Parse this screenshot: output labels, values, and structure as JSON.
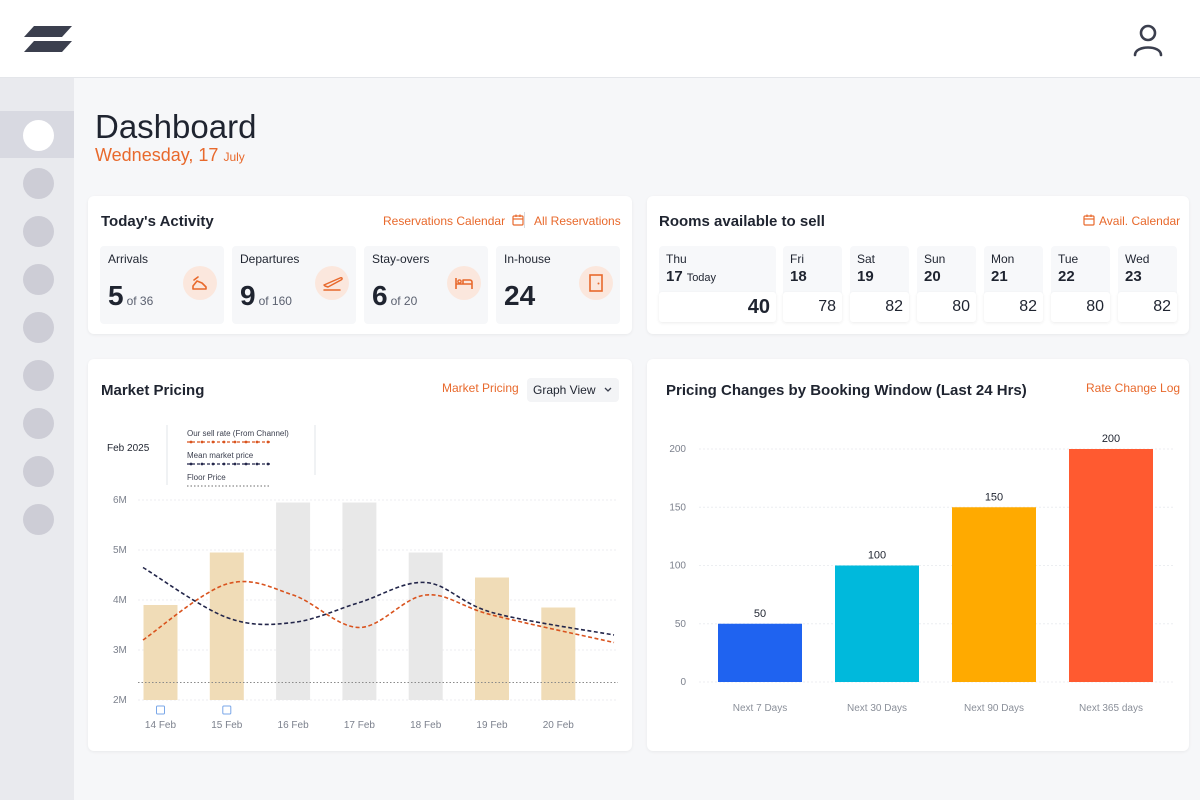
{
  "page": {
    "title": "Dashboard",
    "date_main": "Wednesday, 17",
    "date_month": "July"
  },
  "activity": {
    "title": "Today's Activity",
    "reservations_calendar": "Reservations Calendar",
    "all_reservations": "All Reservations",
    "tiles": [
      {
        "label": "Arrivals",
        "value": "5",
        "sub": "of 36",
        "icon": "walking-icon"
      },
      {
        "label": "Departures",
        "value": "9",
        "sub": "of 160",
        "icon": "plane-departure-icon"
      },
      {
        "label": "Stay-overs",
        "value": "6",
        "sub": "of 20",
        "icon": "bed-icon"
      },
      {
        "label": "In-house",
        "value": "24",
        "sub": "",
        "icon": "door-icon"
      }
    ]
  },
  "rooms": {
    "title": "Rooms available to sell",
    "avail_calendar": "Avail. Calendar",
    "days": [
      {
        "name": "Thu",
        "num": "17",
        "today": "Today",
        "value": "40"
      },
      {
        "name": "Fri",
        "num": "18",
        "value": "78"
      },
      {
        "name": "Sat",
        "num": "19",
        "value": "82"
      },
      {
        "name": "Sun",
        "num": "20",
        "value": "80"
      },
      {
        "name": "Mon",
        "num": "21",
        "value": "82"
      },
      {
        "name": "Tue",
        "num": "22",
        "value": "80"
      },
      {
        "name": "Wed",
        "num": "23",
        "value": "82"
      }
    ]
  },
  "market": {
    "title": "Market Pricing",
    "link": "Market Pricing",
    "view_select": "Graph View",
    "period": "Feb 2025",
    "colors": {
      "bar_highlight": "#f0dcb7",
      "bar_grey": "#e8e8e8",
      "sell": "#d9531e",
      "mean": "#23264a",
      "floor": "#8a8a8a"
    }
  },
  "pricing": {
    "title": "Pricing Changes by Booking Window (Last 24 Hrs)",
    "link": "Rate Change Log"
  },
  "chart_data": [
    {
      "type": "bar",
      "title": "Market Pricing",
      "categories": [
        "14 Feb",
        "15 Feb",
        "16 Feb",
        "17 Feb",
        "18 Feb",
        "19 Feb",
        "20 Feb"
      ],
      "yticks": [
        "2M",
        "3M",
        "4M",
        "5M",
        "6M"
      ],
      "ylim": [
        2,
        6
      ],
      "grid": true,
      "legend_position": "top-left",
      "series": [
        {
          "name": "",
          "kind": "bar",
          "values": [
            3.9,
            4.95,
            5.95,
            5.95,
            4.95,
            4.45,
            3.85
          ],
          "highlight": [
            true,
            true,
            false,
            false,
            false,
            true,
            true
          ]
        },
        {
          "name": "Our sell rate (From Channel)",
          "kind": "line",
          "color": "#d9531e",
          "values": [
            3.2,
            4.32,
            4.1,
            3.45,
            4.1,
            3.7,
            3.15
          ]
        },
        {
          "name": "Mean market price",
          "kind": "line",
          "color": "#23264a",
          "values": [
            4.65,
            3.65,
            3.55,
            3.95,
            4.35,
            3.75,
            3.3
          ]
        },
        {
          "name": "Floor Price",
          "kind": "line",
          "color": "#8a8a8a",
          "values": [
            2.35,
            2.35,
            2.35,
            2.35,
            2.35,
            2.35,
            2.35
          ]
        }
      ]
    },
    {
      "type": "bar",
      "title": "Pricing Changes by Booking Window (Last 24 Hrs)",
      "categories": [
        "Next 7 Days",
        "Next 30 Days",
        "Next 90 Days",
        "Next 365 days"
      ],
      "values": [
        50,
        100,
        150,
        200
      ],
      "data_labels": [
        "50",
        "100",
        "150",
        "200"
      ],
      "colors": [
        "#1f63f0",
        "#00b9dc",
        "#ffaa00",
        "#ff5a30"
      ],
      "yticks": [
        "0",
        "50",
        "100",
        "150",
        "200"
      ],
      "ylim": [
        0,
        200
      ],
      "grid": true
    }
  ]
}
